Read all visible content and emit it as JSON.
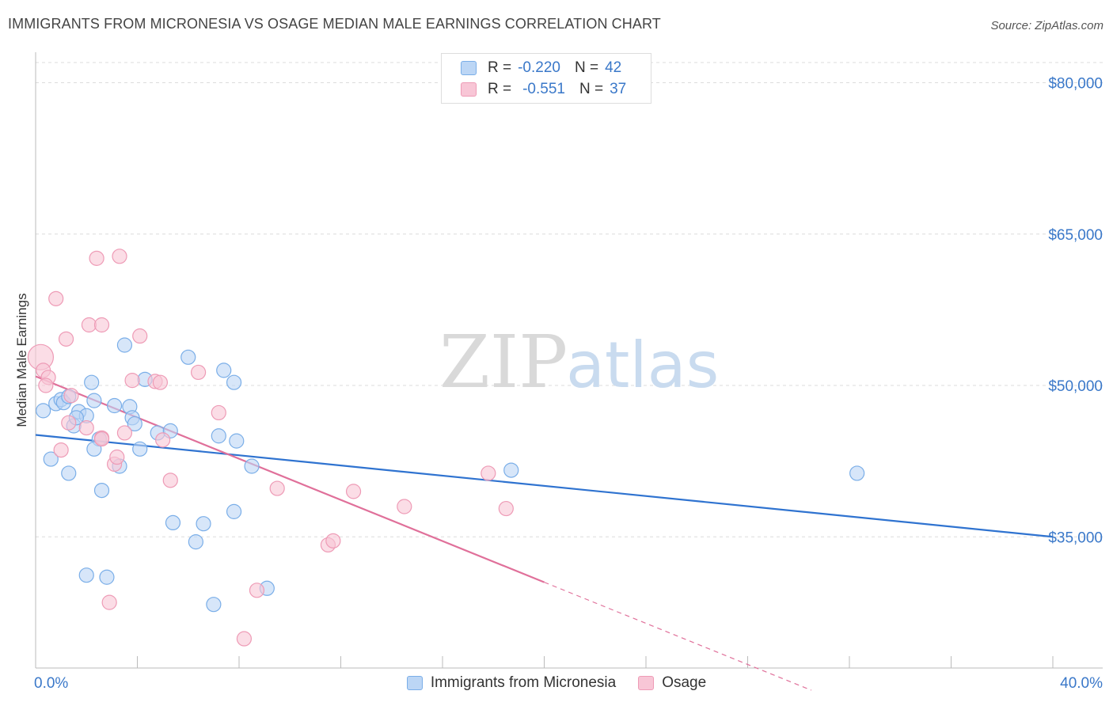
{
  "header": {
    "title": "IMMIGRANTS FROM MICRONESIA VS OSAGE MEDIAN MALE EARNINGS CORRELATION CHART",
    "source": "Source: ZipAtlas.com"
  },
  "legend_stats": [
    {
      "r_label": "R =",
      "r_value": "-0.220",
      "n_label": "N =",
      "n_value": "42"
    },
    {
      "r_label": "R =",
      "r_value": "-0.551",
      "n_label": "N =",
      "n_value": "37"
    }
  ],
  "watermark": {
    "zip": "ZIP",
    "atlas": "atlas"
  },
  "chart_data": {
    "type": "scatter",
    "title": "IMMIGRANTS FROM MICRONESIA VS OSAGE MEDIAN MALE EARNINGS CORRELATION CHART",
    "ylabel": "Median Male Earnings",
    "xlabel": "",
    "xlim": [
      0,
      40
    ],
    "ylim": [
      22000,
      82000
    ],
    "x_tick_labels": [
      "0.0%",
      "40.0%"
    ],
    "y_ticks": [
      35000,
      50000,
      65000,
      80000
    ],
    "y_tick_labels": [
      "$35,000",
      "$50,000",
      "$65,000",
      "$80,000"
    ],
    "grid": true,
    "legend_position": "top-center",
    "series": [
      {
        "name": "Immigrants from Micronesia",
        "color": "#7aaee8",
        "fill": "#bcd6f5",
        "trend": {
          "x": [
            0,
            40
          ],
          "y": [
            45100,
            35000
          ],
          "color": "#2f73d0"
        },
        "points": [
          [
            0.3,
            47500
          ],
          [
            0.8,
            48200
          ],
          [
            1.0,
            48600
          ],
          [
            1.1,
            48300
          ],
          [
            1.3,
            48900
          ],
          [
            1.7,
            47400
          ],
          [
            2.0,
            47000
          ],
          [
            1.5,
            46000
          ],
          [
            1.6,
            46800
          ],
          [
            2.2,
            50300
          ],
          [
            2.3,
            48500
          ],
          [
            3.1,
            48000
          ],
          [
            3.7,
            47900
          ],
          [
            3.8,
            46800
          ],
          [
            4.3,
            50600
          ],
          [
            3.5,
            54000
          ],
          [
            0.6,
            42700
          ],
          [
            1.3,
            41300
          ],
          [
            2.5,
            44700
          ],
          [
            2.3,
            43700
          ],
          [
            3.3,
            42000
          ],
          [
            3.9,
            46200
          ],
          [
            4.1,
            43700
          ],
          [
            4.8,
            45300
          ],
          [
            5.3,
            45500
          ],
          [
            6.0,
            52800
          ],
          [
            7.4,
            51500
          ],
          [
            7.8,
            50300
          ],
          [
            7.2,
            45000
          ],
          [
            7.9,
            44500
          ],
          [
            8.5,
            42000
          ],
          [
            2.6,
            39600
          ],
          [
            5.4,
            36400
          ],
          [
            6.6,
            36300
          ],
          [
            7.8,
            37500
          ],
          [
            6.3,
            34500
          ],
          [
            2.0,
            31200
          ],
          [
            2.8,
            31000
          ],
          [
            9.1,
            29900
          ],
          [
            7.0,
            28300
          ],
          [
            18.7,
            41600
          ],
          [
            32.3,
            41300
          ]
        ]
      },
      {
        "name": "Osage",
        "color": "#ee9bb6",
        "fill": "#f8c6d6",
        "trend": {
          "x": [
            0,
            20
          ],
          "y": [
            50900,
            30500
          ],
          "color": "#e0709a",
          "dashed_to": [
            30.5,
            19800
          ]
        },
        "points": [
          [
            0.2,
            52800
          ],
          [
            0.3,
            51500
          ],
          [
            0.5,
            50800
          ],
          [
            0.8,
            58600
          ],
          [
            1.2,
            54600
          ],
          [
            1.4,
            49000
          ],
          [
            2.1,
            56000
          ],
          [
            2.6,
            56000
          ],
          [
            2.4,
            62600
          ],
          [
            3.3,
            62800
          ],
          [
            4.1,
            54900
          ],
          [
            3.8,
            50500
          ],
          [
            4.7,
            50400
          ],
          [
            6.4,
            51300
          ],
          [
            7.2,
            47300
          ],
          [
            1.0,
            43600
          ],
          [
            1.3,
            46300
          ],
          [
            2.0,
            45800
          ],
          [
            2.6,
            44800
          ],
          [
            3.5,
            45300
          ],
          [
            3.1,
            42200
          ],
          [
            3.2,
            42900
          ],
          [
            5.0,
            44600
          ],
          [
            5.3,
            40600
          ],
          [
            9.5,
            39800
          ],
          [
            12.5,
            39500
          ],
          [
            14.5,
            38000
          ],
          [
            17.8,
            41300
          ],
          [
            18.5,
            37800
          ],
          [
            11.5,
            34200
          ],
          [
            11.7,
            34600
          ],
          [
            2.9,
            28500
          ],
          [
            8.7,
            29700
          ],
          [
            8.2,
            24900
          ],
          [
            2.6,
            44700
          ],
          [
            0.4,
            50000
          ],
          [
            4.9,
            50300
          ]
        ]
      }
    ]
  }
}
